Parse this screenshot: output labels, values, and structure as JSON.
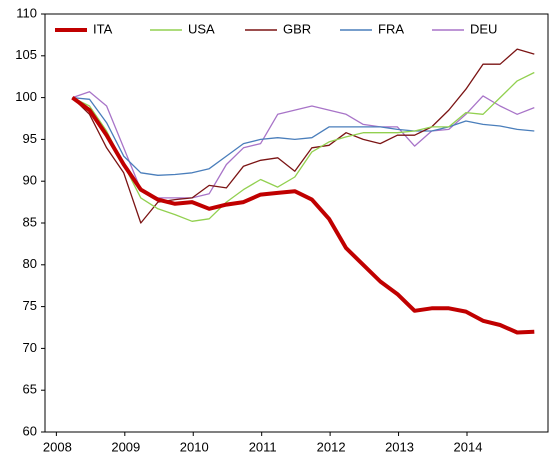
{
  "chart_data": {
    "type": "line",
    "x": [
      2008,
      2008.25,
      2008.5,
      2008.75,
      2009,
      2009.25,
      2009.5,
      2009.75,
      2010,
      2010.25,
      2010.5,
      2010.75,
      2011,
      2011.25,
      2011.5,
      2011.75,
      2012,
      2012.25,
      2012.5,
      2012.75,
      2013,
      2013.25,
      2013.5,
      2013.75,
      2014,
      2014.25,
      2014.5,
      2014.75
    ],
    "series": [
      {
        "name": "ITA",
        "color": "#c00000",
        "values": [
          100,
          98.5,
          95.5,
          92,
          89,
          87.8,
          87.3,
          87.5,
          86.7,
          87.2,
          87.5,
          88.4,
          88.6,
          88.8,
          87.8,
          85.5,
          82,
          80,
          78,
          76.5,
          74.5,
          74.8,
          74.8,
          74.4,
          73.3,
          72.8,
          71.9,
          72
        ]
      },
      {
        "name": "USA",
        "color": "#92d050",
        "values": [
          100,
          99,
          96,
          92,
          88,
          86.7,
          86,
          85.2,
          85.5,
          87.5,
          89,
          90.2,
          89.3,
          90.5,
          93.5,
          94.7,
          95.3,
          95.8,
          95.8,
          95.8,
          96,
          96.5,
          96.5,
          98.2,
          98,
          100,
          102,
          103
        ]
      },
      {
        "name": "GBR",
        "color": "#7b1414",
        "values": [
          100,
          98,
          94,
          91,
          85,
          87.5,
          87.8,
          88,
          89.5,
          89.2,
          91.8,
          92.5,
          92.8,
          91.2,
          94,
          94.3,
          95.8,
          95,
          94.5,
          95.5,
          95.5,
          96.5,
          98.5,
          101,
          104,
          104,
          105.8,
          105.2
        ]
      },
      {
        "name": "FRA",
        "color": "#4a7ebb",
        "values": [
          100,
          99.8,
          97,
          93,
          91,
          90.7,
          90.8,
          91,
          91.5,
          93,
          94.5,
          95,
          95.2,
          95,
          95.2,
          96.5,
          96.5,
          96.5,
          96.5,
          96.2,
          96,
          96,
          96.5,
          97.2,
          96.8,
          96.6,
          96.2,
          96
        ]
      },
      {
        "name": "DEU",
        "color": "#a874c8",
        "values": [
          100,
          100.7,
          99,
          94,
          89,
          88,
          88,
          88,
          88.5,
          92,
          94,
          94.5,
          98,
          98.5,
          99,
          98.5,
          98,
          96.8,
          96.5,
          96.5,
          94.2,
          96,
          96.2,
          98,
          100.2,
          99,
          98,
          98.8
        ]
      }
    ],
    "xlim": [
      2007.6,
      2014.95
    ],
    "xticks": [
      2008,
      2009,
      2010,
      2011,
      2012,
      2013,
      2014
    ],
    "ylim": [
      60,
      110
    ],
    "yticks": [
      60,
      65,
      70,
      75,
      80,
      85,
      90,
      95,
      100,
      105,
      110
    ]
  }
}
